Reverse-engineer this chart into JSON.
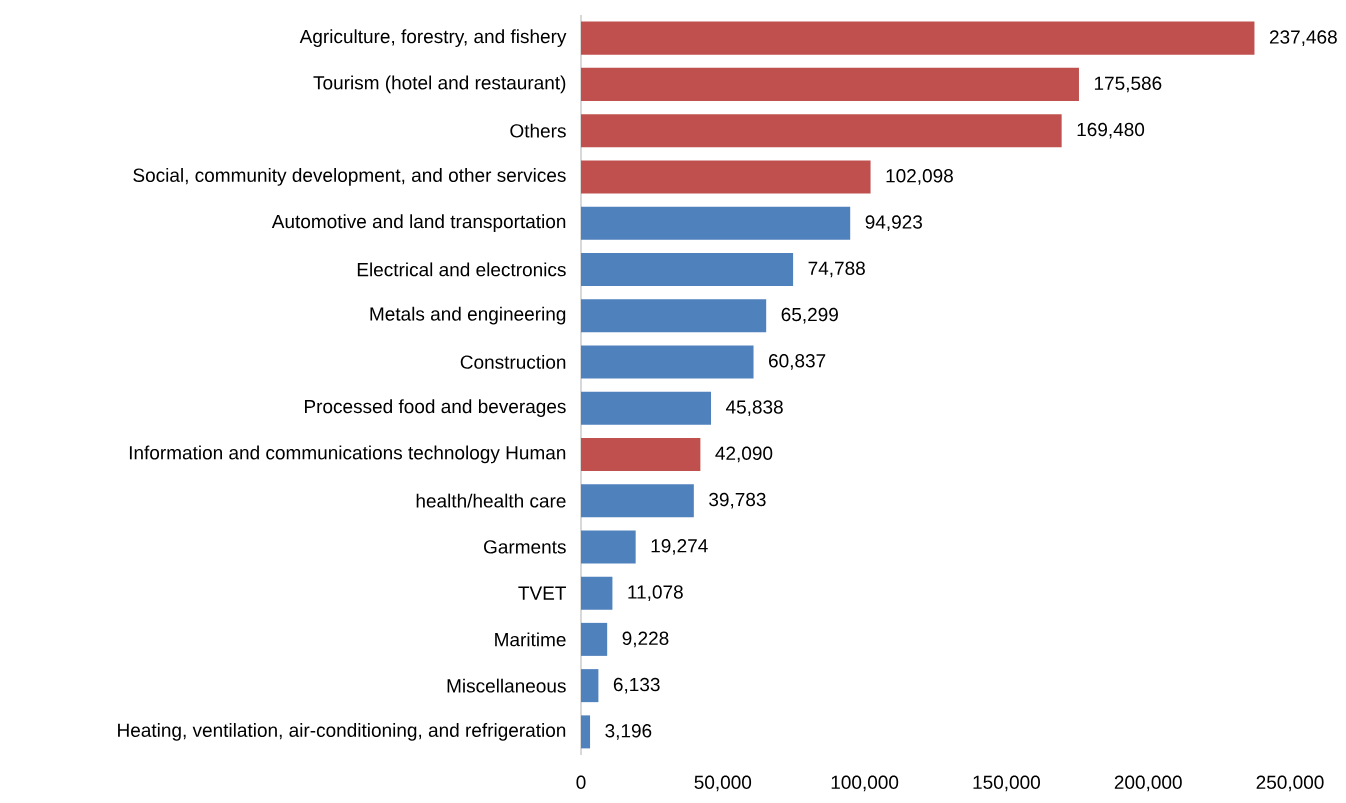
{
  "chart_data": {
    "type": "bar",
    "orientation": "horizontal",
    "categories": [
      "Agriculture, forestry, and fishery",
      "Tourism (hotel and restaurant)",
      "Others",
      "Social, community development, and other services",
      "Automotive and land transportation",
      "Electrical and electronics",
      "Metals and engineering",
      "Construction",
      "Processed food and beverages",
      "Information and communications technology Human",
      "health/health care",
      "Garments",
      "TVET",
      "Maritime",
      "Miscellaneous",
      "Heating, ventilation, air-conditioning, and refrigeration"
    ],
    "values": [
      237468,
      175586,
      169480,
      102098,
      94923,
      74788,
      65299,
      60837,
      45838,
      42090,
      39783,
      19274,
      11078,
      9228,
      6133,
      3196
    ],
    "value_labels": [
      "237,468",
      "175,586",
      "169,480",
      "102,098",
      "94,923",
      "74,788",
      "65,299",
      "60,837",
      "45,838",
      "42,090",
      "39,783",
      "19,274",
      "11,078",
      "9,228",
      "6,133",
      "3,196"
    ],
    "colors": [
      "#c0504d",
      "#c0504d",
      "#c0504d",
      "#c0504d",
      "#4f81bd",
      "#4f81bd",
      "#4f81bd",
      "#4f81bd",
      "#4f81bd",
      "#c0504d",
      "#4f81bd",
      "#4f81bd",
      "#4f81bd",
      "#4f81bd",
      "#4f81bd",
      "#4f81bd"
    ],
    "xlim": [
      0,
      250000
    ],
    "xticks": [
      0,
      {
        "value": 50000,
        "label": "50,000"
      },
      {
        "value": 100000,
        "label": "100,000"
      },
      {
        "value": 150000,
        "label": "150,000"
      },
      {
        "value": 200000,
        "label": "200,000"
      },
      {
        "value": 250000,
        "label": "250,000"
      }
    ],
    "grid": false
  }
}
